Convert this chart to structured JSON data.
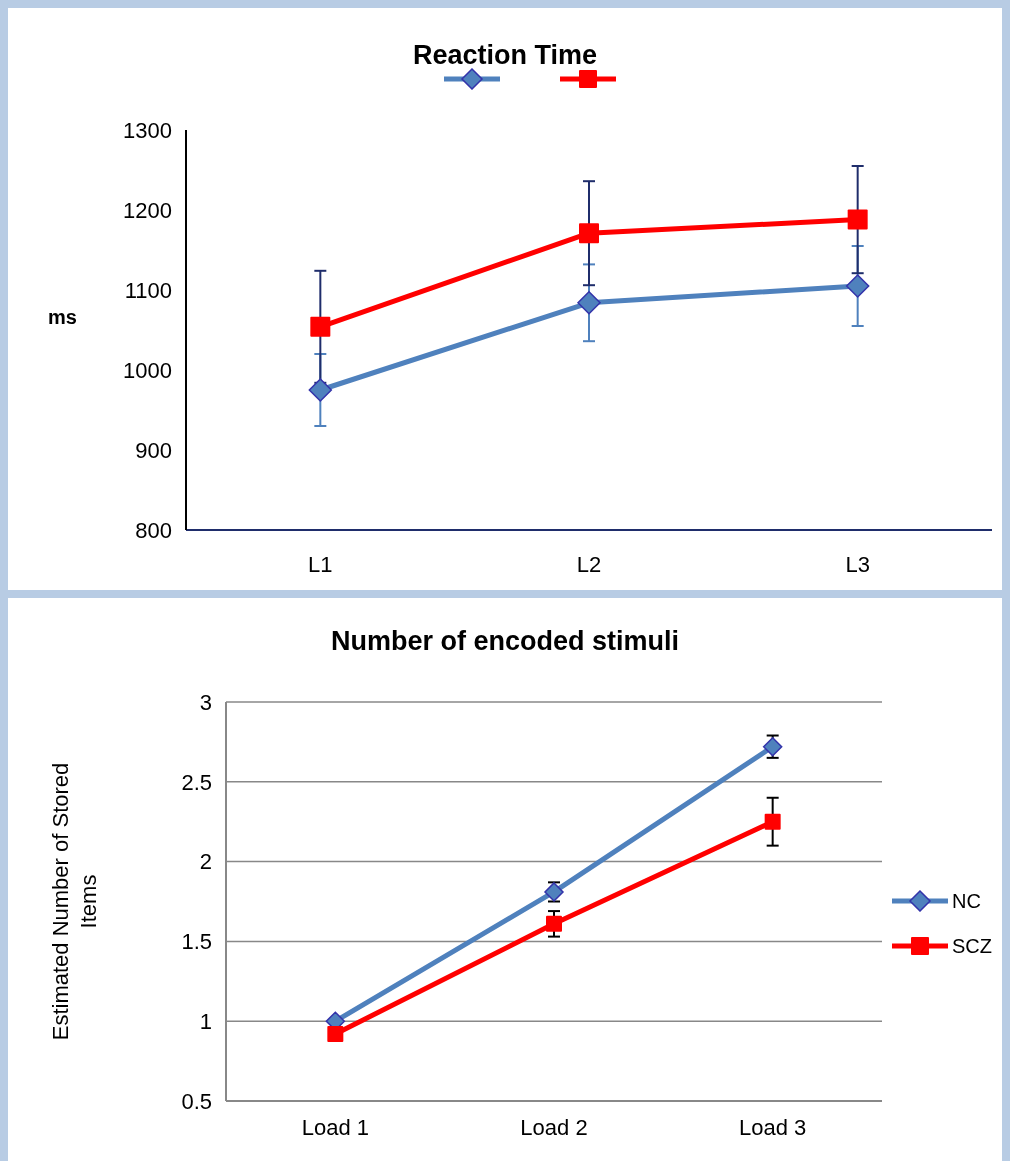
{
  "chart_data": [
    {
      "type": "line",
      "title": "Reaction Time",
      "ylabel": "ms",
      "categories": [
        "L1",
        "L2",
        "L3"
      ],
      "ylim": [
        800,
        1300
      ],
      "yticks": [
        800,
        900,
        1000,
        1100,
        1200,
        1300
      ],
      "grid": false,
      "legend": "top",
      "line_style": "solid",
      "series": [
        {
          "color": "#4f81bd",
          "marker": "diamond",
          "values": [
            975,
            1084,
            1105
          ],
          "errors": [
            45,
            48,
            50
          ]
        },
        {
          "color": "#ff0000",
          "marker": "square",
          "values": [
            1054,
            1171,
            1188
          ],
          "errors": [
            70,
            65,
            67
          ]
        }
      ]
    },
    {
      "type": "line",
      "title": "Number of encoded stimuli",
      "ylabel": "Estimated Number of Stored Items",
      "categories": [
        "Load 1",
        "Load 2",
        "Load 3"
      ],
      "ylim": [
        0.5,
        3
      ],
      "yticks": [
        0.5,
        1,
        1.5,
        2,
        2.5,
        3
      ],
      "grid": "y",
      "legend": "right",
      "line_style": "solid",
      "series": [
        {
          "name": "NC",
          "color": "#4f81bd",
          "marker": "diamond",
          "values": [
            1.0,
            1.81,
            2.72
          ],
          "errors": [
            null,
            0.06,
            0.07
          ]
        },
        {
          "name": "SCZ",
          "color": "#ff0000",
          "marker": "square",
          "values": [
            0.92,
            1.61,
            2.25
          ],
          "errors": [
            null,
            0.08,
            0.15
          ]
        }
      ]
    }
  ]
}
